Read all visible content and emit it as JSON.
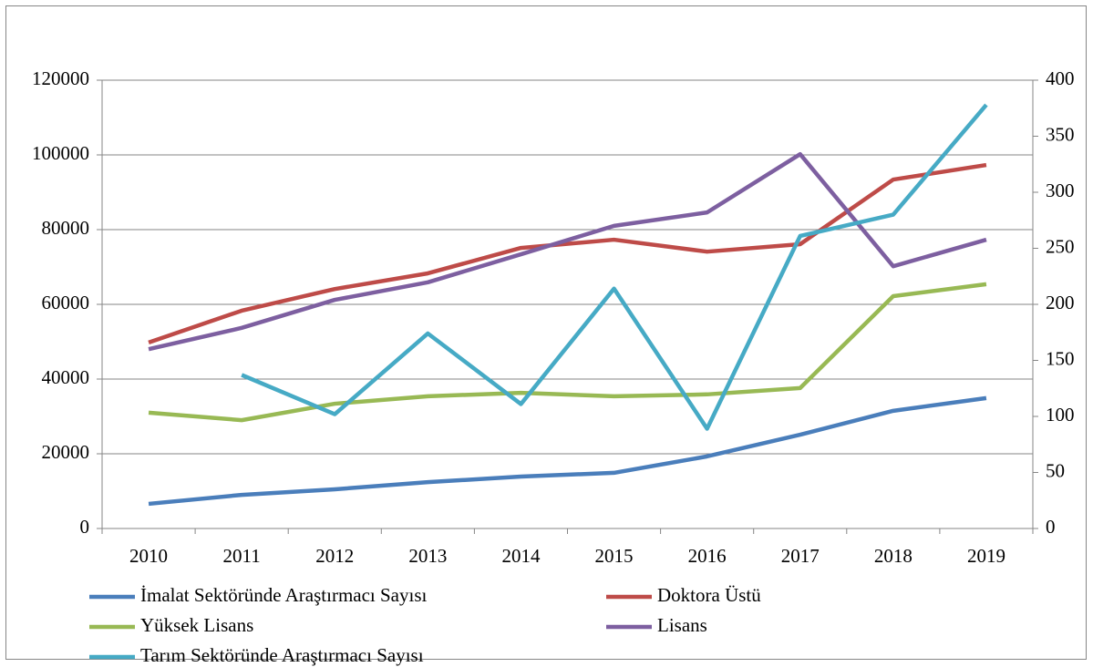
{
  "chart_data": {
    "type": "line",
    "categories": [
      "2010",
      "2011",
      "2012",
      "2013",
      "2014",
      "2015",
      "2016",
      "2017",
      "2018",
      "2019"
    ],
    "series": [
      {
        "name": "İmalat Sektöründe Araştırmacı Sayısı",
        "color": "#4a7ebb",
        "values": [
          6600,
          9000,
          10500,
          12400,
          13900,
          14900,
          19300,
          25100,
          31500,
          34900
        ]
      },
      {
        "name": "Doktora Üstü",
        "color": "#be4b48",
        "values": [
          49800,
          58300,
          64100,
          68300,
          75100,
          77300,
          74100,
          76100,
          93400,
          97300
        ]
      },
      {
        "name": "Yüksek Lisans",
        "color": "#98b954",
        "values": [
          31000,
          29000,
          33400,
          35400,
          36300,
          35400,
          35900,
          37600,
          62200,
          65400
        ]
      },
      {
        "name": "Lisans",
        "color": "#7d5fa0",
        "values": [
          48000,
          53700,
          61200,
          65900,
          73400,
          81000,
          84600,
          100200,
          70200,
          77300
        ]
      },
      {
        "name": "Tarım Sektöründe Araştırmacı Sayısı",
        "color": "#46aac5",
        "axis": "y2",
        "values": [
          null,
          137,
          102,
          174,
          111,
          214,
          89,
          261,
          280,
          378
        ]
      }
    ],
    "ylim": [
      0,
      120000
    ],
    "yticks": [
      0,
      20000,
      40000,
      60000,
      80000,
      100000,
      120000
    ],
    "y2lim": [
      0,
      400
    ],
    "y2ticks": [
      0,
      50,
      100,
      150,
      200,
      250,
      300,
      350,
      400
    ],
    "grid": true
  }
}
